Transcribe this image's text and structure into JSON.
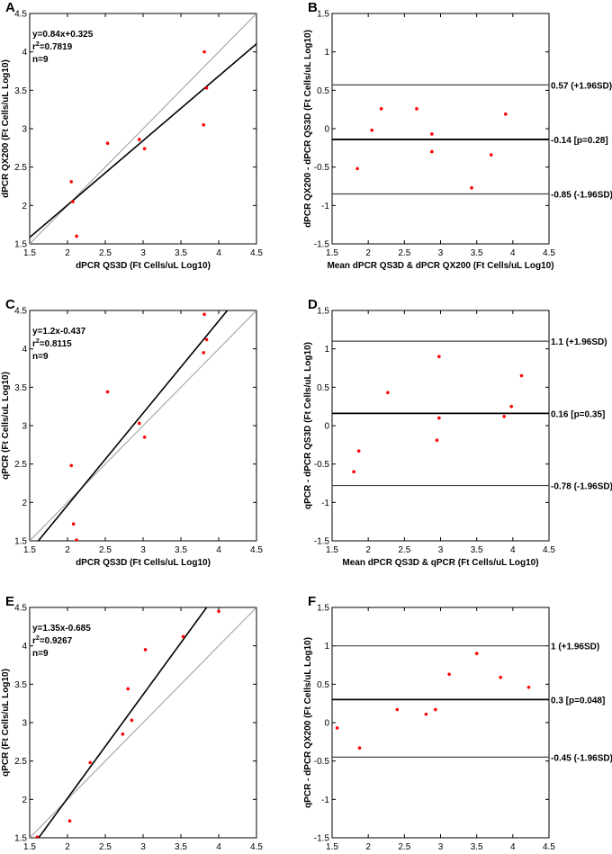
{
  "chart_data": [
    {
      "panel": "A",
      "type": "scatter",
      "xlabel": "dPCR QS3D (Ft Cells/uL Log10)",
      "ylabel": "dPCR QX200 (Ft Cells/uL Log10)",
      "xlim": [
        1.5,
        4.5
      ],
      "ylim": [
        1.5,
        4.5
      ],
      "xticks": [
        "1.5",
        "2",
        "2.5",
        "3",
        "3.5",
        "4",
        "4.5"
      ],
      "yticks": [
        "1.5",
        "2",
        "2.5",
        "3",
        "3.5",
        "4",
        "4.5"
      ],
      "annotations": [
        "y=0.84x+0.325",
        "r2=0.7819",
        "n=9"
      ],
      "identity_line": true,
      "regression": {
        "slope": 0.84,
        "intercept": 0.325
      },
      "points": [
        [
          2.05,
          2.31
        ],
        [
          2.07,
          2.05
        ],
        [
          2.12,
          1.6
        ],
        [
          2.53,
          2.81
        ],
        [
          2.95,
          2.86
        ],
        [
          3.02,
          2.74
        ],
        [
          3.8,
          3.05
        ],
        [
          3.81,
          4.0
        ],
        [
          3.84,
          3.53
        ]
      ]
    },
    {
      "panel": "B",
      "type": "bland-altman",
      "xlabel": "Mean dPCR QS3D & dPCR QX200 (Ft Cells/uL Log10)",
      "ylabel": "dPCR QX200 - dPCR QS3D (Ft Cells/uL Log10)",
      "xlim": [
        1.5,
        4.5
      ],
      "ylim": [
        -1.5,
        1.5
      ],
      "xticks": [
        "1.5",
        "2",
        "2.5",
        "3",
        "3.5",
        "4",
        "4.5"
      ],
      "yticks": [
        "-1.5",
        "-1",
        "-0.5",
        "0",
        "0.5",
        "1",
        "1.5"
      ],
      "mean_line": {
        "y": -0.14,
        "label": "-0.14 [p=0.28]"
      },
      "upper_line": {
        "y": 0.57,
        "label": "0.57 (+1.96SD)"
      },
      "lower_line": {
        "y": -0.85,
        "label": "-0.85 (-1.96SD)"
      },
      "points": [
        [
          1.85,
          -0.52
        ],
        [
          2.05,
          -0.02
        ],
        [
          2.18,
          0.26
        ],
        [
          2.67,
          0.26
        ],
        [
          2.88,
          -0.07
        ],
        [
          2.88,
          -0.3
        ],
        [
          3.43,
          -0.77
        ],
        [
          3.7,
          -0.34
        ],
        [
          3.9,
          0.19
        ]
      ]
    },
    {
      "panel": "C",
      "type": "scatter",
      "xlabel": "dPCR QS3D (Ft Cells/uL Log10)",
      "ylabel": "qPCR (Ft Cells/uL Log10)",
      "xlim": [
        1.5,
        4.5
      ],
      "ylim": [
        1.5,
        4.5
      ],
      "xticks": [
        "1.5",
        "2",
        "2.5",
        "3",
        "3.5",
        "4",
        "4.5"
      ],
      "yticks": [
        "1.5",
        "2",
        "2.5",
        "3",
        "3.5",
        "4",
        "4.5"
      ],
      "annotations": [
        "y=1.2x-0.437",
        "r2=0.8115",
        "n=9"
      ],
      "identity_line": true,
      "regression": {
        "slope": 1.2,
        "intercept": -0.437
      },
      "points": [
        [
          2.05,
          2.48
        ],
        [
          2.08,
          1.72
        ],
        [
          2.12,
          1.51
        ],
        [
          2.53,
          3.44
        ],
        [
          2.95,
          3.03
        ],
        [
          3.02,
          2.85
        ],
        [
          3.8,
          3.95
        ],
        [
          3.81,
          4.45
        ],
        [
          3.84,
          4.12
        ]
      ]
    },
    {
      "panel": "D",
      "type": "bland-altman",
      "xlabel": "Mean dPCR QS3D & qPCR (Ft Cells/uL Log10)",
      "ylabel": "qPCR - dPCR QS3D (Ft Cells/uL Log10)",
      "xlim": [
        1.5,
        4.5
      ],
      "ylim": [
        -1.5,
        1.5
      ],
      "xticks": [
        "1.5",
        "2",
        "2.5",
        "3",
        "3.5",
        "4",
        "4.5"
      ],
      "yticks": [
        "-1.5",
        "-1",
        "-0.5",
        "0",
        "0.5",
        "1",
        "1.5"
      ],
      "mean_line": {
        "y": 0.16,
        "label": "0.16 [p=0.35]"
      },
      "upper_line": {
        "y": 1.1,
        "label": "1.1 (+1.96SD)"
      },
      "lower_line": {
        "y": -0.78,
        "label": "-0.78 (-1.96SD)"
      },
      "points": [
        [
          1.8,
          -0.6
        ],
        [
          1.87,
          -0.33
        ],
        [
          2.27,
          0.43
        ],
        [
          2.95,
          -0.19
        ],
        [
          2.98,
          0.1
        ],
        [
          2.98,
          0.9
        ],
        [
          3.88,
          0.12
        ],
        [
          3.98,
          0.25
        ],
        [
          4.12,
          0.65
        ]
      ]
    },
    {
      "panel": "E",
      "type": "scatter",
      "xlabel": "dPCR QX200 (Ft Cells/uL Log10)",
      "ylabel": "qPCR (Ft Cells/uL Log10)",
      "xlim": [
        1.5,
        4.5
      ],
      "ylim": [
        1.5,
        4.5
      ],
      "xticks": [
        "1.5",
        "2",
        "2.5",
        "3",
        "3.5",
        "4",
        "4.5"
      ],
      "yticks": [
        "1.5",
        "2",
        "2.5",
        "3",
        "3.5",
        "4",
        "4.5"
      ],
      "annotations": [
        "y=1.35x-0.685",
        "r2=0.9267",
        "n=9"
      ],
      "identity_line": true,
      "regression": {
        "slope": 1.35,
        "intercept": -0.685
      },
      "points": [
        [
          1.6,
          1.51
        ],
        [
          2.03,
          1.72
        ],
        [
          2.3,
          2.48
        ],
        [
          2.73,
          2.85
        ],
        [
          2.8,
          3.44
        ],
        [
          2.85,
          3.03
        ],
        [
          3.03,
          3.95
        ],
        [
          3.53,
          4.12
        ],
        [
          4.0,
          4.45
        ]
      ]
    },
    {
      "panel": "F",
      "type": "bland-altman",
      "xlabel": "Mean dPCR QX200 & qPCR (Ft Cells/uL Log10)",
      "ylabel": "qPCR - dPCR QX200 (Ft Cells/uL Log10)",
      "xlim": [
        1.5,
        4.5
      ],
      "ylim": [
        -1.5,
        1.5
      ],
      "xticks": [
        "1.5",
        "2",
        "2.5",
        "3",
        "3.5",
        "4",
        "4.5"
      ],
      "yticks": [
        "-1.5",
        "-1",
        "-0.5",
        "0",
        "0.5",
        "1",
        "1.5"
      ],
      "mean_line": {
        "y": 0.3,
        "label": "0.3 [p=0.048]"
      },
      "upper_line": {
        "y": 1.0,
        "label": "1 (+1.96SD)"
      },
      "lower_line": {
        "y": -0.45,
        "label": "-0.45 (-1.96SD)"
      },
      "points": [
        [
          1.57,
          -0.07
        ],
        [
          1.88,
          -0.33
        ],
        [
          2.4,
          0.17
        ],
        [
          2.8,
          0.11
        ],
        [
          2.93,
          0.17
        ],
        [
          3.12,
          0.63
        ],
        [
          3.5,
          0.9
        ],
        [
          3.83,
          0.59
        ],
        [
          4.22,
          0.46
        ]
      ]
    }
  ],
  "colors": {
    "point": "#ff0000",
    "regression": "#000000",
    "identity": "#aaaaaa",
    "axis": "#000000"
  }
}
